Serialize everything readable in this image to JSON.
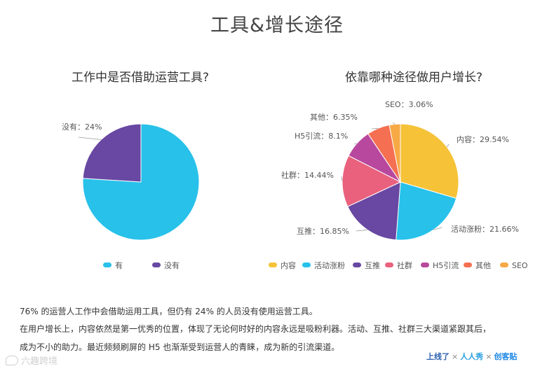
{
  "page_title": "工具&增长途径",
  "chart_data": [
    {
      "type": "pie",
      "title": "工作中是否借助运营工具?",
      "categories": [
        "有",
        "没有"
      ],
      "values": [
        76,
        24
      ],
      "colors": [
        "#27c1ea",
        "#6848a2"
      ],
      "data_labels": [
        "",
        "没有：24%"
      ],
      "legend": "bottom",
      "legend_labels": [
        "有",
        "没有"
      ]
    },
    {
      "type": "pie",
      "title": "依靠哪种途径做用户增长?",
      "categories": [
        "内容",
        "活动涨粉",
        "互推",
        "社群",
        "H5引流",
        "其他",
        "SEO"
      ],
      "values": [
        29.54,
        21.66,
        16.85,
        14.44,
        8.1,
        6.35,
        3.06
      ],
      "colors": [
        "#f5c238",
        "#27c1ea",
        "#6848a2",
        "#e9617d",
        "#b8489e",
        "#f57052",
        "#f7a945"
      ],
      "data_labels": [
        "内容：29.54%",
        "活动涨粉：21.66%",
        "互推：16.85%",
        "社群：14.44%",
        "H5引流：8.1%",
        "其他：6.35%",
        "SEO：3.06%"
      ],
      "legend": "bottom",
      "legend_labels": [
        "内容",
        "活动涨粉",
        "互推",
        "社群",
        "H5引流",
        "其他",
        "SEO"
      ]
    }
  ],
  "text": {
    "line1": "76% 的运营人工作中会借助运用工具，但仍有 24% 的人员没有使用运营工具。",
    "line2": "在用户增长上，内容依然是第一优秀的位置，体现了无论何时好的内容永远是吸粉利器。活动、互推、社群三大渠道紧跟其后，",
    "line3": "成为不小的助力。最近频频刷屏的 H5 也渐渐受到运营人的青睐，成为新的引流渠道。"
  },
  "logos": {
    "logo_a": "上线了",
    "logo_b": "人人秀",
    "logo_c": "创客贴",
    "separator": "×"
  },
  "watermark": "六趣跨境"
}
